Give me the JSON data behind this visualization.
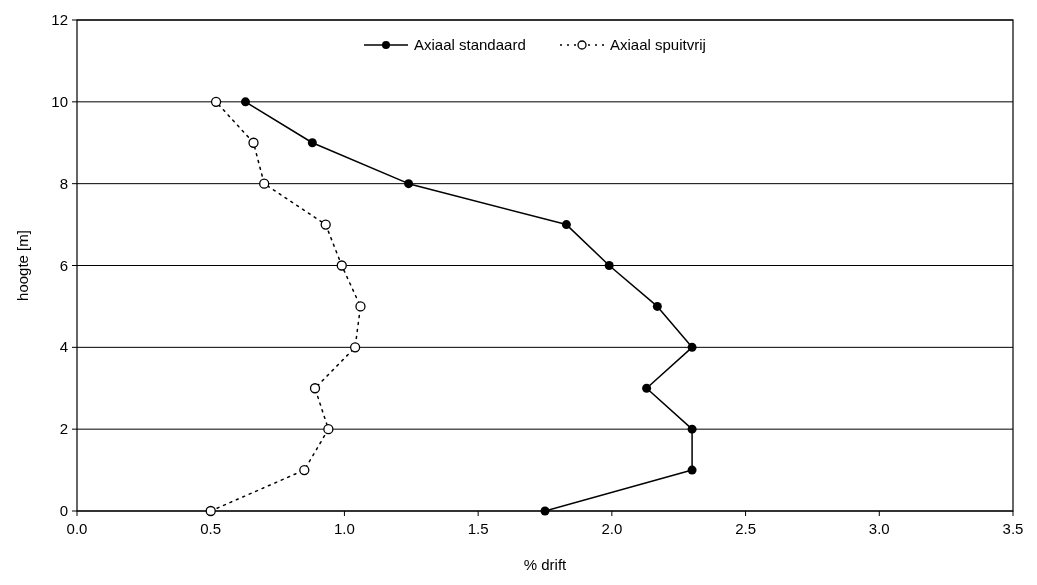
{
  "chart_data": {
    "type": "line",
    "xlabel": "% drift",
    "ylabel": "hoogte [m]",
    "xlim": [
      0,
      3.5
    ],
    "xticks": [
      {
        "value": 0,
        "label": "0.0"
      },
      {
        "value": 0.5,
        "label": "0.5"
      },
      {
        "value": 1,
        "label": "1.0"
      },
      {
        "value": 1.5,
        "label": "1.5"
      },
      {
        "value": 2,
        "label": "2.0"
      },
      {
        "value": 2.5,
        "label": "2.5"
      },
      {
        "value": 3,
        "label": "3.0"
      },
      {
        "value": 3.5,
        "label": "3.5"
      }
    ],
    "ylim": [
      0,
      12
    ],
    "yticks": [
      0,
      2,
      4,
      6,
      8,
      10,
      12
    ],
    "grid": "y",
    "legend": "top",
    "series": [
      {
        "name": "Axiaal standaard",
        "color": "#000000",
        "marker": "circle",
        "line_style": "solid",
        "x": [
          1.75,
          2.3,
          2.3,
          2.13,
          2.3,
          2.17,
          1.99,
          1.83,
          1.24,
          0.88,
          0.63
        ],
        "values": [
          0,
          1,
          2,
          3,
          4,
          5,
          6,
          7,
          8,
          9,
          10
        ]
      },
      {
        "name": "Axiaal spuitvrij",
        "color": "#000000",
        "marker": "open-circle",
        "line_style": "dotted",
        "x": [
          0.5,
          0.85,
          0.94,
          0.89,
          1.04,
          1.06,
          0.99,
          0.93,
          0.7,
          0.66,
          0.52
        ],
        "values": [
          0,
          1,
          2,
          3,
          4,
          5,
          6,
          7,
          8,
          9,
          10
        ]
      }
    ]
  }
}
